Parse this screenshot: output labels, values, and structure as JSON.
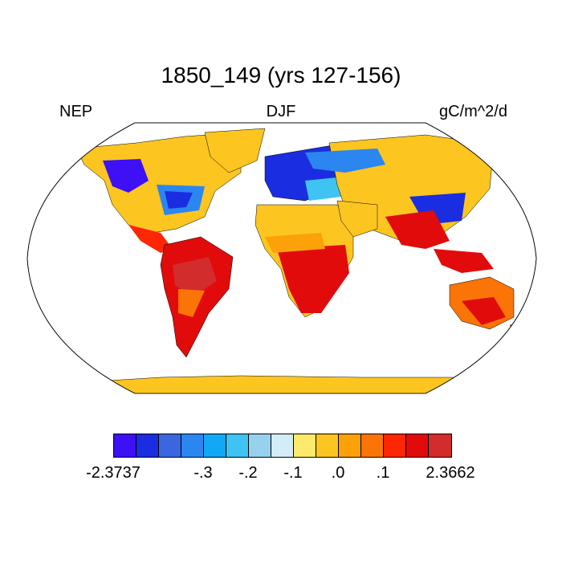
{
  "title": "1850_149 (yrs 127-156)",
  "left_label": "NEP",
  "center_label": "DJF",
  "right_label": "gC/m^2/d",
  "colorbar": {
    "colors": [
      "#3d10f5",
      "#1a2de0",
      "#3c66e0",
      "#2b86f0",
      "#13a8f5",
      "#3fc3f2",
      "#96d1ee",
      "#d2ecf8",
      "#fde96b",
      "#fcc520",
      "#fca10a",
      "#fb7407",
      "#fd2605",
      "#e10b0b",
      "#d22c2c"
    ],
    "labels": [
      "-2.3737",
      "-.3",
      "-.2",
      "-.1",
      ".0",
      ".1",
      "2.3662"
    ]
  }
}
